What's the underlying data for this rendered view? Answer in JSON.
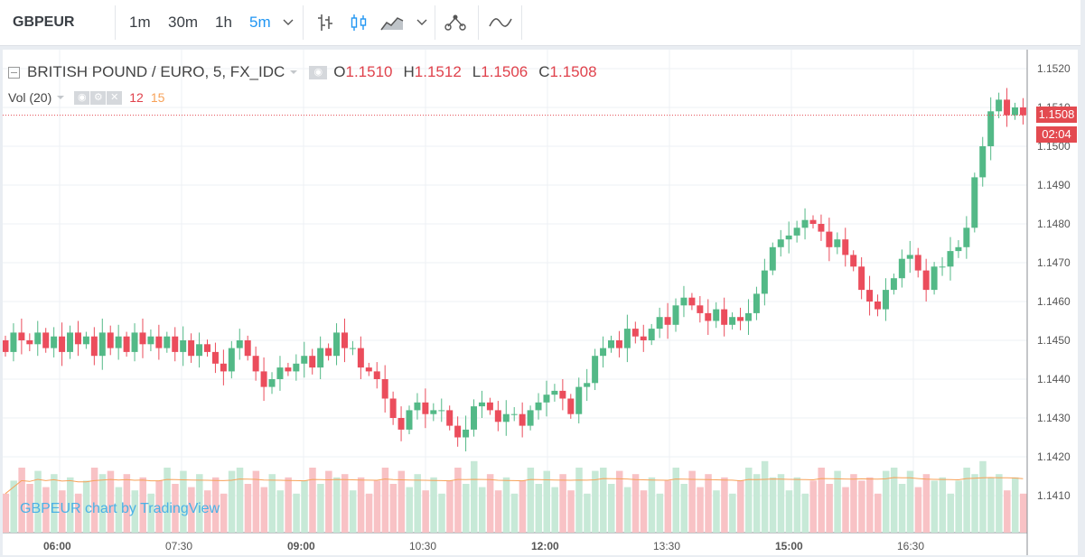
{
  "toolbar": {
    "symbol": "GBPEUR",
    "intervals": [
      "1m",
      "30m",
      "1h",
      "5m"
    ],
    "active_interval": "5m"
  },
  "legend": {
    "title": "BRITISH POUND / EURO, 5, FX_IDC",
    "o_label": "O",
    "o_value": "1.1510",
    "h_label": "H",
    "h_value": "1.1512",
    "l_label": "L",
    "l_value": "1.1506",
    "c_label": "C",
    "c_value": "1.1508",
    "vol_label": "Vol (20)",
    "vol_value": "12",
    "vol_ma_value": "15"
  },
  "watermark": "GBPEUR chart by TradingView",
  "last_price_tag": "1.1508",
  "countdown_tag": "02:04",
  "colors": {
    "up": "#53b987",
    "down": "#eb4d5c",
    "vol_up": "#c7e9d7",
    "vol_down": "#f8c2c5",
    "vol_ma": "#f7a259",
    "price_line": "#e34a50",
    "grid": "#eef1f4"
  },
  "chart_data": {
    "type": "candlestick",
    "title": "BRITISH POUND / EURO, 5, FX_IDC",
    "x_ticks": [
      "06:00",
      "07:30",
      "09:00",
      "10:30",
      "12:00",
      "13:30",
      "15:00",
      "16:30"
    ],
    "y_ticks": [
      "1.1410",
      "1.1420",
      "1.1430",
      "1.1440",
      "1.1450",
      "1.1460",
      "1.1470",
      "1.1480",
      "1.1490",
      "1.1500",
      "1.1510",
      "1.1520"
    ],
    "ylim": [
      1.1401,
      1.1523
    ],
    "last_price": 1.1508,
    "interval_minutes": 5,
    "ohlc_close": [
      1.1447,
      1.1452,
      1.145,
      1.1449,
      1.1452,
      1.1448,
      1.1451,
      1.1447,
      1.1452,
      1.1449,
      1.1451,
      1.1446,
      1.1452,
      1.1448,
      1.1451,
      1.1447,
      1.1452,
      1.1449,
      1.1451,
      1.1448,
      1.1451,
      1.1447,
      1.145,
      1.1446,
      1.1449,
      1.1447,
      1.1444,
      1.1442,
      1.1448,
      1.145,
      1.1446,
      1.1442,
      1.1438,
      1.144,
      1.1443,
      1.1442,
      1.1444,
      1.1446,
      1.1443,
      1.1448,
      1.1446,
      1.1452,
      1.1448,
      1.1448,
      1.1443,
      1.1442,
      1.144,
      1.1435,
      1.143,
      1.1427,
      1.1432,
      1.1434,
      1.1431,
      1.1432,
      1.1432,
      1.1428,
      1.1425,
      1.1427,
      1.1433,
      1.1434,
      1.1432,
      1.1429,
      1.1431,
      1.1431,
      1.1428,
      1.1432,
      1.1434,
      1.1436,
      1.1437,
      1.1435,
      1.1431,
      1.1438,
      1.1439,
      1.1446,
      1.1448,
      1.145,
      1.1448,
      1.1453,
      1.1451,
      1.145,
      1.1453,
      1.1456,
      1.1454,
      1.1459,
      1.1461,
      1.1459,
      1.1457,
      1.1455,
      1.1458,
      1.1454,
      1.1456,
      1.1455,
      1.1457,
      1.1462,
      1.1468,
      1.1474,
      1.1476,
      1.1477,
      1.1479,
      1.1481,
      1.148,
      1.1478,
      1.1474,
      1.1476,
      1.1472,
      1.1469,
      1.1463,
      1.146,
      1.1458,
      1.1463,
      1.1466,
      1.1471,
      1.1472,
      1.1468,
      1.1463,
      1.1469,
      1.1469,
      1.1473,
      1.1474,
      1.1479,
      1.1492,
      1.15,
      1.1509,
      1.1512,
      1.1508,
      1.151,
      1.1508
    ],
    "volume_y_ticks": [],
    "volume_note": "Volume histogram with 20-period moving average (Vol 20); last value 12, MA 15"
  }
}
